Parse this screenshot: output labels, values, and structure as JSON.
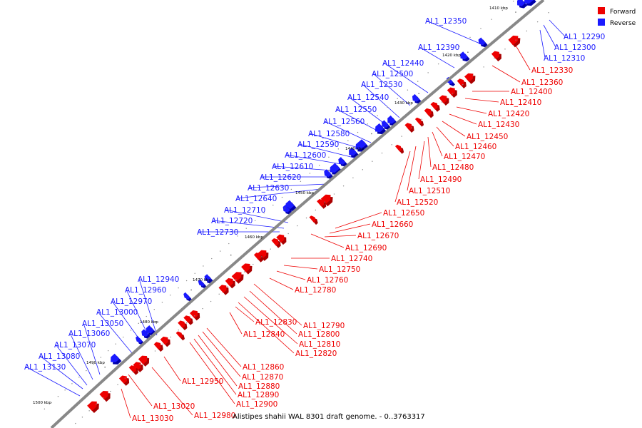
{
  "caption": "Alistipes shahii WAL 8301 draft genome. - 0..3763317",
  "legend": [
    {
      "label": "Forward",
      "color": "#ee0000"
    },
    {
      "label": "Reverse",
      "color": "#1a1aff"
    }
  ],
  "colors": {
    "forward": "#ee0000",
    "reverse": "#1a1aff",
    "backbone": "#888888"
  },
  "ticks": [
    "1410 kbp",
    "1420 kbp",
    "1430 kbp",
    "1440 kbp",
    "1450 kbp",
    "1460 kbp",
    "1470 kbp",
    "1480 kbp",
    "1490 kbp",
    "1500 kbp"
  ],
  "reverse_labels": [
    "AL1_12290",
    "AL1_12300",
    "AL1_12310",
    "AL1_12350",
    "AL1_12390",
    "AL1_12440",
    "AL1_12500",
    "AL1_12530",
    "AL1_12540",
    "AL1_12550",
    "AL1_12560",
    "AL1_12580",
    "AL1_12590",
    "AL1_12600",
    "AL1_12610",
    "AL1_12620",
    "AL1_12630",
    "AL1_12640",
    "AL1_12710",
    "AL1_12720",
    "AL1_12730",
    "AL1_12940",
    "AL1_12960",
    "AL1_12970",
    "AL1_13000",
    "AL1_13050",
    "AL1_13060",
    "AL1_13070",
    "AL1_13080",
    "AL1_13130"
  ],
  "forward_labels": [
    "AL1_12330",
    "AL1_12360",
    "AL1_12400",
    "AL1_12410",
    "AL1_12420",
    "AL1_12430",
    "AL1_12450",
    "AL1_12460",
    "AL1_12470",
    "AL1_12480",
    "AL1_12490",
    "AL1_12510",
    "AL1_12520",
    "AL1_12650",
    "AL1_12660",
    "AL1_12670",
    "AL1_12690",
    "AL1_12740",
    "AL1_12750",
    "AL1_12760",
    "AL1_12780",
    "AL1_12790",
    "AL1_12800",
    "AL1_12810",
    "AL1_12820",
    "AL1_12830",
    "AL1_12840",
    "AL1_12860",
    "AL1_12870",
    "AL1_12880",
    "AL1_12890",
    "AL1_12900",
    "AL1_12950",
    "AL1_12980",
    "AL1_13020",
    "AL1_13030"
  ]
}
